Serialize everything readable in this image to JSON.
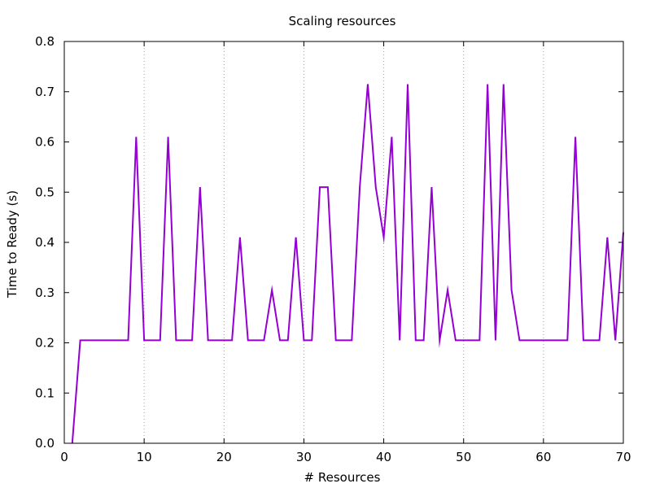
{
  "chart_data": {
    "type": "line",
    "title": "Scaling resources",
    "xlabel": "# Resources",
    "ylabel": "Time to Ready (s)",
    "xlim": [
      0,
      70
    ],
    "ylim": [
      0,
      0.8
    ],
    "xticks": [
      0,
      10,
      20,
      30,
      40,
      50,
      60,
      70
    ],
    "yticks": [
      0.0,
      0.1,
      0.2,
      0.3,
      0.4,
      0.5,
      0.6,
      0.7,
      0.8
    ],
    "xtick_labels": [
      "0",
      "10",
      "20",
      "30",
      "40",
      "50",
      "60",
      "70"
    ],
    "ytick_labels": [
      "0.0",
      "0.1",
      "0.2",
      "0.3",
      "0.4",
      "0.5",
      "0.6",
      "0.7",
      "0.8"
    ],
    "grid": "vertical-dotted",
    "legend": "none",
    "line_color": "#9400d3",
    "series": [
      {
        "x": [
          1,
          2,
          3,
          4,
          5,
          6,
          7,
          8,
          9,
          10,
          11,
          12,
          13,
          14,
          15,
          16,
          17,
          18,
          19,
          20,
          21,
          22,
          23,
          24,
          25,
          26,
          27,
          28,
          29,
          30,
          31,
          32,
          33,
          34,
          35,
          36,
          37,
          38,
          39,
          40,
          41,
          42,
          43,
          44,
          45,
          46,
          47,
          48,
          49,
          50,
          51,
          52,
          53,
          54,
          55,
          56,
          57,
          58,
          59,
          60,
          61,
          62,
          63,
          64,
          65,
          66,
          67,
          68,
          69,
          70
        ],
        "values": [
          0.0,
          0.205,
          0.205,
          0.205,
          0.205,
          0.205,
          0.205,
          0.205,
          0.61,
          0.205,
          0.205,
          0.205,
          0.61,
          0.205,
          0.205,
          0.205,
          0.51,
          0.205,
          0.205,
          0.205,
          0.205,
          0.41,
          0.205,
          0.205,
          0.205,
          0.305,
          0.205,
          0.205,
          0.41,
          0.205,
          0.205,
          0.51,
          0.51,
          0.205,
          0.205,
          0.205,
          0.51,
          0.715,
          0.51,
          0.41,
          0.61,
          0.205,
          0.715,
          0.205,
          0.205,
          0.51,
          0.205,
          0.305,
          0.205,
          0.205,
          0.205,
          0.205,
          0.715,
          0.205,
          0.715,
          0.305,
          0.205,
          0.205,
          0.205,
          0.205,
          0.205,
          0.205,
          0.205,
          0.61,
          0.205,
          0.205,
          0.205,
          0.41,
          0.205,
          0.42
        ]
      }
    ]
  }
}
